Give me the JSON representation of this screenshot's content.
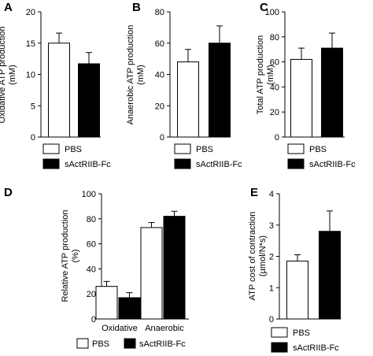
{
  "chart_data": [
    {
      "panel": "A",
      "type": "bar",
      "categories": [
        "PBS",
        "sActRIIB-Fc"
      ],
      "values": [
        15.0,
        11.7
      ],
      "errors": [
        1.6,
        1.8
      ],
      "ylabel": "Oxidative ATP production (mM)",
      "ylabel_lines": [
        "Oxidative ATP production",
        "(mM)"
      ],
      "ylim": [
        0,
        20
      ],
      "yticks": [
        0,
        5,
        10,
        15,
        20
      ],
      "legend": [
        "PBS",
        "sActRIIB-Fc"
      ]
    },
    {
      "panel": "B",
      "type": "bar",
      "categories": [
        "PBS",
        "sActRIIB-Fc"
      ],
      "values": [
        48,
        60
      ],
      "errors": [
        8,
        11
      ],
      "ylabel": "Anaerobic ATP production (mM)",
      "ylabel_lines": [
        "Anaerobic ATP production",
        "(mM)"
      ],
      "ylim": [
        0,
        80
      ],
      "yticks": [
        0,
        20,
        40,
        60,
        80
      ],
      "legend": [
        "PBS",
        "sActRIIB-Fc"
      ]
    },
    {
      "panel": "C",
      "type": "bar",
      "categories": [
        "PBS",
        "sActRIIB-Fc"
      ],
      "values": [
        62,
        71
      ],
      "errors": [
        9,
        12
      ],
      "ylabel": "Total ATP production (mM)",
      "ylabel_lines": [
        "Total ATP production",
        "(mM)"
      ],
      "ylim": [
        0,
        100
      ],
      "yticks": [
        0,
        20,
        40,
        60,
        80,
        100
      ],
      "legend": [
        "PBS",
        "sActRIIB-Fc"
      ]
    },
    {
      "panel": "D",
      "type": "bar",
      "categories": [
        "Oxidative",
        "Anaerobic"
      ],
      "series": [
        {
          "name": "PBS",
          "values": [
            26,
            73
          ],
          "errors": [
            4,
            4
          ]
        },
        {
          "name": "sActRIIB-Fc",
          "values": [
            17,
            82
          ],
          "errors": [
            4,
            4
          ]
        }
      ],
      "ylabel": "Relative ATP production (%)",
      "ylabel_lines": [
        "Relative ATP production",
        "(%)"
      ],
      "ylim": [
        0,
        100
      ],
      "yticks": [
        0,
        20,
        40,
        60,
        80,
        100
      ]
    },
    {
      "panel": "E",
      "type": "bar",
      "categories": [
        "PBS",
        "sActRIIB-Fc"
      ],
      "values": [
        1.85,
        2.8
      ],
      "errors": [
        0.2,
        0.65
      ],
      "ylabel": "ATP cost of contraction (µmol/N*s)",
      "ylabel_lines": [
        "ATP cost of contraction",
        "(µmol/N*s)"
      ],
      "ylim": [
        0,
        4
      ],
      "yticks": [
        0,
        1,
        2,
        3,
        4
      ],
      "legend": [
        "PBS",
        "sActRIIB-Fc"
      ]
    }
  ],
  "colors": {
    "pbs": "#ffffff",
    "treated": "#000000",
    "stroke": "#000000"
  }
}
